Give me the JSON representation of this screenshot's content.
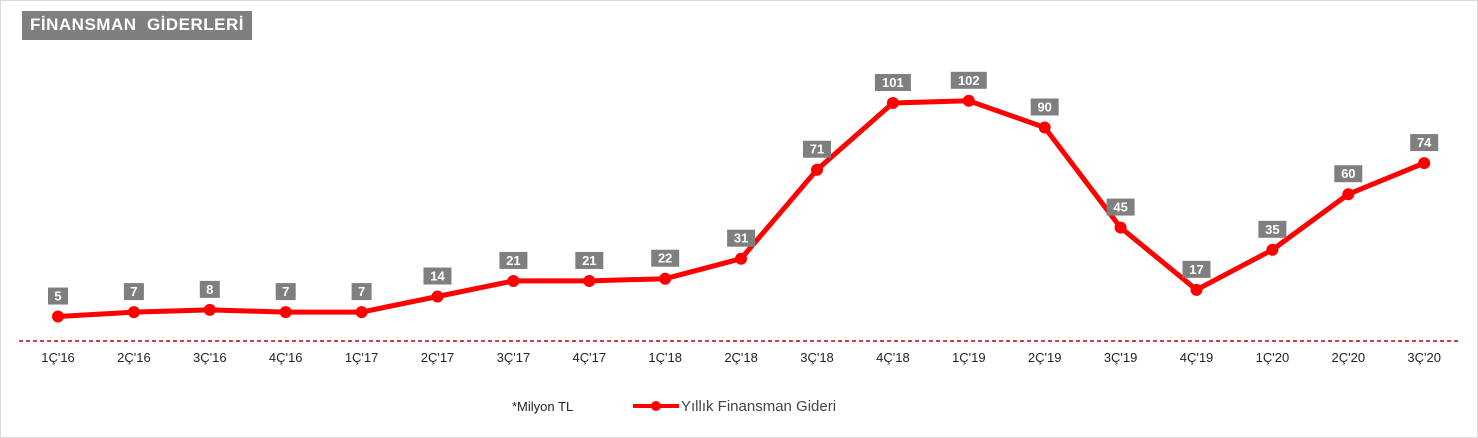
{
  "chart_data": {
    "type": "line",
    "title": "FİNANSMAN  GİDERLERİ",
    "unit_note": "*Milyon TL",
    "categories": [
      "1Ç'16",
      "2Ç'16",
      "3Ç'16",
      "4Ç'16",
      "1Ç'17",
      "2Ç'17",
      "3Ç'17",
      "4Ç'17",
      "1Ç'18",
      "2Ç'18",
      "3Ç'18",
      "4Ç'18",
      "1Ç'19",
      "2Ç'19",
      "3Ç'19",
      "4Ç'19",
      "1Ç'20",
      "2Ç'20",
      "3Ç'20"
    ],
    "series": [
      {
        "name": "Yıllık Finansman Gideri",
        "values": [
          5,
          7,
          8,
          7,
          7,
          14,
          21,
          21,
          22,
          31,
          71,
          101,
          102,
          90,
          45,
          17,
          35,
          60,
          74
        ],
        "color": "#ff0000"
      }
    ],
    "ylim": [
      -6,
      110
    ],
    "grid": false,
    "legend": "bottom",
    "label_bg_color": "#7f7f7f",
    "baseline_color": "#c00000"
  }
}
